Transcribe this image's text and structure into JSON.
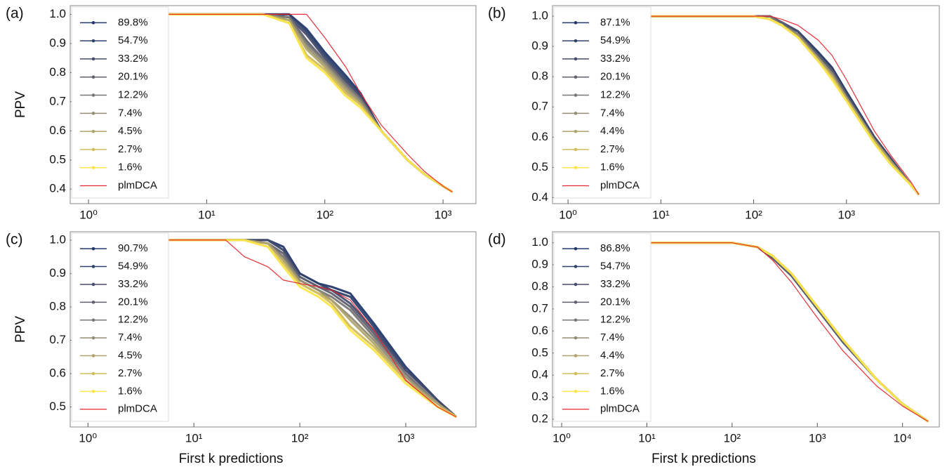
{
  "chart_data": [
    {
      "type": "line",
      "panel_label": "(a)",
      "y_label": "PPV",
      "log_x": true,
      "legend": "upper left",
      "xlim": [
        0.7,
        1900
      ],
      "ylim": [
        0.35,
        1.03
      ],
      "xticks": [
        {
          "value": 1,
          "label": "10⁰"
        },
        {
          "value": 10,
          "label": "10¹"
        },
        {
          "value": 100,
          "label": "10²"
        },
        {
          "value": 1000,
          "label": "10³"
        }
      ],
      "yticks": [
        0.4,
        0.5,
        0.6,
        0.7,
        0.8,
        0.9,
        {
          "value": 1.0,
          "label": "1.0"
        }
      ],
      "x": [
        1,
        10,
        30,
        50,
        70,
        100,
        150,
        200,
        300,
        500,
        700,
        1000,
        1200
      ],
      "series": [
        {
          "name": "89.8%",
          "color": "#23386b",
          "values": [
            1,
            1,
            1,
            1,
            0.95,
            0.87,
            0.79,
            0.73,
            0.6,
            0.5,
            0.45,
            0.41,
            0.39
          ]
        },
        {
          "name": "54.7%",
          "color": "#2f426c",
          "values": [
            1,
            1,
            1,
            1,
            0.94,
            0.86,
            0.78,
            0.72,
            0.6,
            0.5,
            0.45,
            0.41,
            0.39
          ]
        },
        {
          "name": "33.2%",
          "color": "#474c6d",
          "values": [
            1,
            1,
            1,
            0.99,
            0.93,
            0.85,
            0.77,
            0.72,
            0.6,
            0.5,
            0.45,
            0.41,
            0.39
          ]
        },
        {
          "name": "20.1%",
          "color": "#5e6070",
          "values": [
            1,
            1,
            1,
            0.99,
            0.91,
            0.84,
            0.76,
            0.71,
            0.6,
            0.5,
            0.45,
            0.41,
            0.39
          ]
        },
        {
          "name": "12.2%",
          "color": "#787775",
          "values": [
            1,
            1,
            1,
            0.99,
            0.9,
            0.84,
            0.76,
            0.71,
            0.6,
            0.5,
            0.45,
            0.41,
            0.39
          ]
        },
        {
          "name": "7.4%",
          "color": "#938d73",
          "values": [
            1,
            1,
            1,
            0.98,
            0.89,
            0.83,
            0.75,
            0.7,
            0.6,
            0.5,
            0.45,
            0.41,
            0.39
          ]
        },
        {
          "name": "4.5%",
          "color": "#b0a36b",
          "values": [
            1,
            1,
            1,
            0.98,
            0.88,
            0.82,
            0.74,
            0.69,
            0.6,
            0.5,
            0.45,
            0.41,
            0.39
          ]
        },
        {
          "name": "2.7%",
          "color": "#d2bd5c",
          "values": [
            1,
            1,
            1,
            0.97,
            0.86,
            0.81,
            0.73,
            0.69,
            0.6,
            0.5,
            0.45,
            0.41,
            0.39
          ]
        },
        {
          "name": "1.6%",
          "color": "#fbe54a",
          "values": [
            1,
            1,
            1,
            0.97,
            0.85,
            0.8,
            0.72,
            0.68,
            0.6,
            0.5,
            0.45,
            0.41,
            0.39
          ]
        },
        {
          "name": "plmDCA",
          "color": "#e8242c",
          "values": [
            1,
            1,
            1,
            1,
            1,
            0.92,
            0.82,
            0.73,
            0.62,
            0.52,
            0.46,
            0.41,
            0.39
          ]
        }
      ]
    },
    {
      "type": "line",
      "panel_label": "(b)",
      "log_x": true,
      "legend": "upper left",
      "xlim": [
        0.68,
        10000
      ],
      "ylim": [
        0.38,
        1.035
      ],
      "xticks": [
        {
          "value": 1,
          "label": "10⁰"
        },
        {
          "value": 10,
          "label": "10¹"
        },
        {
          "value": 100,
          "label": "10²"
        },
        {
          "value": 1000,
          "label": "10³"
        }
      ],
      "yticks": [
        0.4,
        0.5,
        0.6,
        0.7,
        0.8,
        0.9,
        {
          "value": 1.0,
          "label": "1.0"
        }
      ],
      "x": [
        1,
        10,
        100,
        150,
        200,
        300,
        500,
        700,
        1000,
        2000,
        3000,
        5000,
        6000
      ],
      "series": [
        {
          "name": "87.1%",
          "color": "#23386b",
          "values": [
            1,
            1,
            1,
            1,
            0.98,
            0.95,
            0.88,
            0.83,
            0.75,
            0.6,
            0.53,
            0.44,
            0.41
          ]
        },
        {
          "name": "54.9%",
          "color": "#2f426c",
          "values": [
            1,
            1,
            1,
            1,
            0.98,
            0.95,
            0.88,
            0.83,
            0.75,
            0.6,
            0.53,
            0.44,
            0.41
          ]
        },
        {
          "name": "33.2%",
          "color": "#474c6d",
          "values": [
            1,
            1,
            1,
            1,
            0.98,
            0.95,
            0.87,
            0.82,
            0.74,
            0.6,
            0.53,
            0.44,
            0.41
          ]
        },
        {
          "name": "20.1%",
          "color": "#5e6070",
          "values": [
            1,
            1,
            1,
            1,
            0.98,
            0.94,
            0.87,
            0.82,
            0.74,
            0.59,
            0.52,
            0.44,
            0.41
          ]
        },
        {
          "name": "12.2%",
          "color": "#787775",
          "values": [
            1,
            1,
            1,
            1,
            0.97,
            0.94,
            0.86,
            0.81,
            0.73,
            0.59,
            0.52,
            0.44,
            0.41
          ]
        },
        {
          "name": "7.4%",
          "color": "#938d73",
          "values": [
            1,
            1,
            1,
            0.99,
            0.97,
            0.94,
            0.86,
            0.81,
            0.73,
            0.59,
            0.52,
            0.44,
            0.41
          ]
        },
        {
          "name": "4.4%",
          "color": "#b0a36b",
          "values": [
            1,
            1,
            1,
            0.99,
            0.97,
            0.93,
            0.86,
            0.8,
            0.73,
            0.59,
            0.52,
            0.44,
            0.41
          ]
        },
        {
          "name": "2.7%",
          "color": "#d2bd5c",
          "values": [
            1,
            1,
            1,
            0.99,
            0.97,
            0.93,
            0.85,
            0.8,
            0.72,
            0.58,
            0.51,
            0.44,
            0.41
          ]
        },
        {
          "name": "1.6%",
          "color": "#fbe54a",
          "values": [
            1,
            1,
            1,
            0.99,
            0.97,
            0.93,
            0.85,
            0.79,
            0.72,
            0.58,
            0.51,
            0.44,
            0.41
          ]
        },
        {
          "name": "plmDCA",
          "color": "#e8242c",
          "values": [
            1,
            1,
            1,
            1,
            0.99,
            0.97,
            0.92,
            0.87,
            0.79,
            0.62,
            0.54,
            0.45,
            0.41
          ]
        }
      ]
    },
    {
      "type": "line",
      "panel_label": "(c)",
      "y_label": "PPV",
      "x_label": "First k predictions",
      "log_x": true,
      "legend": "upper left",
      "xlim": [
        0.68,
        4600
      ],
      "ylim": [
        0.44,
        1.025
      ],
      "xticks": [
        {
          "value": 1,
          "label": "10⁰"
        },
        {
          "value": 10,
          "label": "10¹"
        },
        {
          "value": 100,
          "label": "10²"
        },
        {
          "value": 1000,
          "label": "10³"
        }
      ],
      "yticks": [
        0.5,
        0.6,
        0.7,
        0.8,
        0.9,
        {
          "value": 1.0,
          "label": "1.0"
        }
      ],
      "x": [
        1,
        10,
        20,
        30,
        50,
        70,
        100,
        150,
        200,
        300,
        500,
        1000,
        2000,
        3000
      ],
      "series": [
        {
          "name": "90.7%",
          "color": "#23386b",
          "values": [
            1,
            1,
            1,
            1,
            1,
            0.98,
            0.9,
            0.87,
            0.86,
            0.84,
            0.75,
            0.62,
            0.52,
            0.47
          ]
        },
        {
          "name": "54.9%",
          "color": "#2f426c",
          "values": [
            1,
            1,
            1,
            1,
            1,
            0.97,
            0.9,
            0.87,
            0.85,
            0.83,
            0.74,
            0.61,
            0.52,
            0.47
          ]
        },
        {
          "name": "33.2%",
          "color": "#474c6d",
          "values": [
            1,
            1,
            1,
            1,
            1,
            0.97,
            0.89,
            0.86,
            0.85,
            0.81,
            0.73,
            0.61,
            0.52,
            0.47
          ]
        },
        {
          "name": "20.1%",
          "color": "#5e6070",
          "values": [
            1,
            1,
            1,
            1,
            0.99,
            0.96,
            0.89,
            0.86,
            0.84,
            0.8,
            0.72,
            0.6,
            0.51,
            0.47
          ]
        },
        {
          "name": "12.2%",
          "color": "#787775",
          "values": [
            1,
            1,
            1,
            1,
            0.99,
            0.95,
            0.88,
            0.85,
            0.83,
            0.79,
            0.71,
            0.6,
            0.51,
            0.47
          ]
        },
        {
          "name": "7.4%",
          "color": "#938d73",
          "values": [
            1,
            1,
            1,
            1,
            0.99,
            0.94,
            0.88,
            0.85,
            0.82,
            0.77,
            0.7,
            0.59,
            0.51,
            0.47
          ]
        },
        {
          "name": "4.5%",
          "color": "#b0a36b",
          "values": [
            1,
            1,
            1,
            1,
            0.99,
            0.94,
            0.87,
            0.84,
            0.82,
            0.76,
            0.69,
            0.58,
            0.51,
            0.47
          ]
        },
        {
          "name": "2.7%",
          "color": "#d2bd5c",
          "values": [
            1,
            1,
            1,
            1,
            0.98,
            0.93,
            0.87,
            0.84,
            0.81,
            0.74,
            0.68,
            0.58,
            0.5,
            0.47
          ]
        },
        {
          "name": "1.6%",
          "color": "#fbe54a",
          "values": [
            1,
            1,
            1,
            1,
            0.98,
            0.92,
            0.86,
            0.83,
            0.8,
            0.73,
            0.67,
            0.57,
            0.5,
            0.47
          ]
        },
        {
          "name": "plmDCA",
          "color": "#e8242c",
          "values": [
            1,
            1,
            1,
            0.95,
            0.92,
            0.88,
            0.87,
            0.86,
            0.85,
            0.82,
            0.73,
            0.58,
            0.5,
            0.47
          ]
        }
      ]
    },
    {
      "type": "line",
      "panel_label": "(d)",
      "x_label": "First k predictions",
      "log_x": true,
      "legend": "upper left",
      "xlim": [
        0.78,
        27000
      ],
      "ylim": [
        0.165,
        1.05
      ],
      "xticks": [
        {
          "value": 1,
          "label": "10⁰"
        },
        {
          "value": 10,
          "label": "10¹"
        },
        {
          "value": 100,
          "label": "10²"
        },
        {
          "value": 1000,
          "label": "10³"
        },
        {
          "value": 10000,
          "label": "10⁴"
        }
      ],
      "yticks": [
        0.2,
        0.3,
        0.4,
        0.5,
        0.6,
        0.7,
        0.8,
        0.9,
        {
          "value": 1.0,
          "label": "1.0"
        }
      ],
      "x": [
        1,
        10,
        60,
        100,
        200,
        300,
        500,
        1000,
        2000,
        5000,
        10000,
        20000
      ],
      "series": [
        {
          "name": "86.8%",
          "color": "#23386b",
          "values": [
            1,
            1,
            1,
            1,
            0.98,
            0.93,
            0.85,
            0.7,
            0.55,
            0.38,
            0.27,
            0.19
          ]
        },
        {
          "name": "54.7%",
          "color": "#2f426c",
          "values": [
            1,
            1,
            1,
            1,
            0.98,
            0.93,
            0.85,
            0.7,
            0.55,
            0.38,
            0.27,
            0.19
          ]
        },
        {
          "name": "33.2%",
          "color": "#474c6d",
          "values": [
            1,
            1,
            1,
            1,
            0.98,
            0.93,
            0.85,
            0.7,
            0.55,
            0.38,
            0.27,
            0.19
          ]
        },
        {
          "name": "20.1%",
          "color": "#5e6070",
          "values": [
            1,
            1,
            1,
            1,
            0.98,
            0.93,
            0.85,
            0.7,
            0.55,
            0.38,
            0.27,
            0.19
          ]
        },
        {
          "name": "12.2%",
          "color": "#787775",
          "values": [
            1,
            1,
            1,
            1,
            0.98,
            0.94,
            0.86,
            0.71,
            0.56,
            0.38,
            0.27,
            0.19
          ]
        },
        {
          "name": "7.4%",
          "color": "#938d73",
          "values": [
            1,
            1,
            1,
            1,
            0.98,
            0.94,
            0.86,
            0.71,
            0.56,
            0.38,
            0.27,
            0.19
          ]
        },
        {
          "name": "4.4%",
          "color": "#b0a36b",
          "values": [
            1,
            1,
            1,
            1,
            0.98,
            0.94,
            0.86,
            0.71,
            0.56,
            0.38,
            0.27,
            0.19
          ]
        },
        {
          "name": "2.7%",
          "color": "#d2bd5c",
          "values": [
            1,
            1,
            1,
            1,
            0.98,
            0.94,
            0.86,
            0.71,
            0.56,
            0.38,
            0.27,
            0.19
          ]
        },
        {
          "name": "1.6%",
          "color": "#fbe54a",
          "values": [
            1,
            1,
            1,
            1,
            0.98,
            0.94,
            0.86,
            0.71,
            0.56,
            0.38,
            0.27,
            0.19
          ]
        },
        {
          "name": "plmDCA",
          "color": "#e8242c",
          "values": [
            1,
            1,
            1,
            1,
            0.98,
            0.92,
            0.82,
            0.66,
            0.51,
            0.35,
            0.26,
            0.19
          ]
        }
      ]
    }
  ]
}
